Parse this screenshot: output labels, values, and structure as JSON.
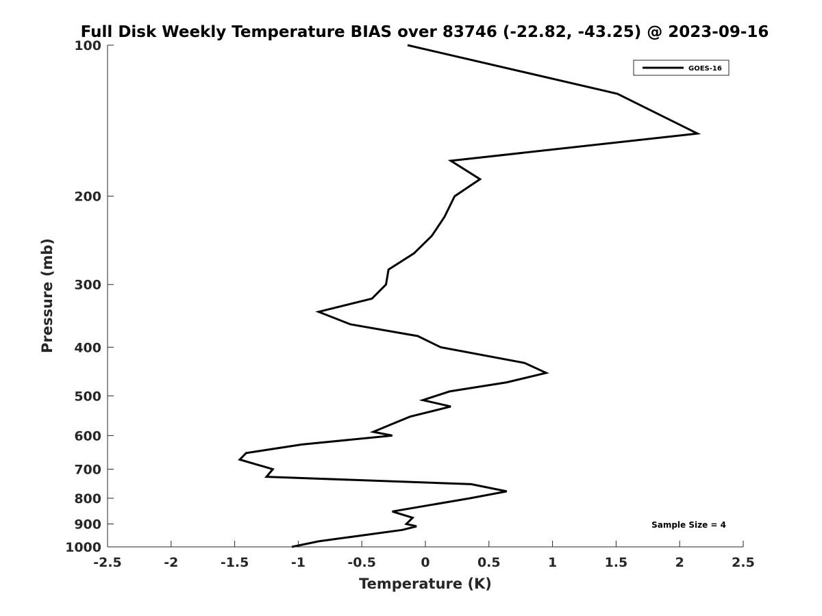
{
  "chart_data": {
    "type": "line",
    "title": "Full Disk Weekly Temperature BIAS over 83746 (-22.82, -43.25) @ 2023-09-16",
    "xlabel": "Temperature (K)",
    "ylabel": "Pressure (mb)",
    "xlim": [
      -2.5,
      2.5
    ],
    "ylim": [
      100,
      1000
    ],
    "y_scale": "log",
    "y_reversed": true,
    "x_ticks": [
      -2.5,
      -2,
      -1.5,
      -1,
      -0.5,
      0,
      0.5,
      1,
      1.5,
      2,
      2.5
    ],
    "x_tick_labels": [
      "-2.5",
      "-2",
      "-1.5",
      "-1",
      "-0.5",
      "0",
      "0.5",
      "1",
      "1.5",
      "2",
      "2.5"
    ],
    "y_ticks": [
      100,
      200,
      300,
      400,
      500,
      600,
      700,
      800,
      900,
      1000
    ],
    "y_tick_labels": [
      "100",
      "200",
      "300",
      "400",
      "500",
      "600",
      "700",
      "800",
      "900",
      "1000"
    ],
    "grid": false,
    "legend_position": "top-right",
    "annotation": "Sample Size = 4",
    "series": [
      {
        "name": "GOES-16",
        "color": "#000000",
        "points": [
          [
            -0.14,
            100
          ],
          [
            1.51,
            125
          ],
          [
            2.14,
            150
          ],
          [
            0.2,
            170
          ],
          [
            0.43,
            185
          ],
          [
            0.23,
            200
          ],
          [
            0.15,
            220
          ],
          [
            0.05,
            240
          ],
          [
            -0.09,
            260
          ],
          [
            -0.29,
            280
          ],
          [
            -0.31,
            300
          ],
          [
            -0.42,
            320
          ],
          [
            -0.84,
            340
          ],
          [
            -0.59,
            360
          ],
          [
            -0.06,
            380
          ],
          [
            0.12,
            400
          ],
          [
            0.78,
            430
          ],
          [
            0.95,
            450
          ],
          [
            0.64,
            470
          ],
          [
            0.19,
            490
          ],
          [
            -0.02,
            510
          ],
          [
            0.2,
            525
          ],
          [
            -0.12,
            550
          ],
          [
            -0.27,
            570
          ],
          [
            -0.41,
            590
          ],
          [
            -0.26,
            600
          ],
          [
            -0.97,
            625
          ],
          [
            -1.41,
            650
          ],
          [
            -1.46,
            670
          ],
          [
            -1.2,
            700
          ],
          [
            -1.25,
            725
          ],
          [
            0.36,
            750
          ],
          [
            0.64,
            775
          ],
          [
            0.35,
            800
          ],
          [
            -0.26,
            850
          ],
          [
            -0.1,
            875
          ],
          [
            -0.15,
            900
          ],
          [
            -0.07,
            910
          ],
          [
            -0.18,
            925
          ],
          [
            -0.84,
            975
          ],
          [
            -1.05,
            1000
          ]
        ]
      }
    ]
  }
}
